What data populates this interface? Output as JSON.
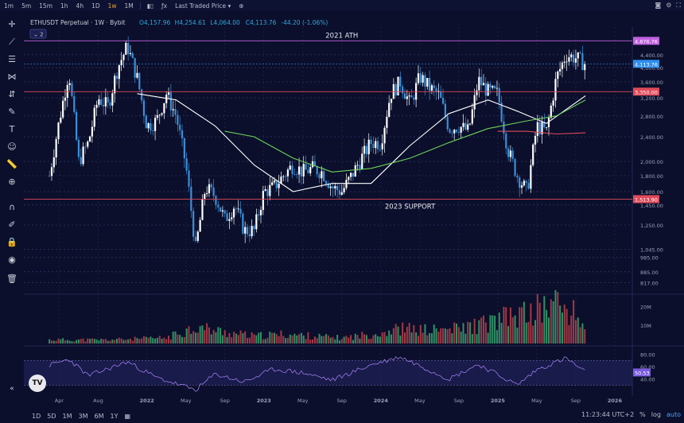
{
  "toolbar": {
    "intervals": [
      "1m",
      "5m",
      "15m",
      "1h",
      "4h",
      "1D",
      "1w",
      "1M"
    ],
    "active_interval": "1w",
    "price_type": "Last Traded Price"
  },
  "legend": {
    "symbol": "ETHUSDT Perpetual · 1W · Bybit",
    "open": "O4,157.96",
    "high": "H4,254.61",
    "low": "L4,064.00",
    "close": "C4,113.76",
    "change": "-44.20 (-1.06%)",
    "indicator_count": "2"
  },
  "bottom": {
    "ranges": [
      "1D",
      "5D",
      "1M",
      "3M",
      "6M",
      "1Y"
    ],
    "clock": "11:23:44 UTC+2",
    "pct": "%",
    "log": "log",
    "auto": "auto"
  },
  "chart_data": {
    "type": "candlestick",
    "title": "ETHUSDT Perpetual · 1W · Bybit",
    "y_scale": "log",
    "ylim": [
      750,
      5400
    ],
    "price_ticks": [
      "4,400.00",
      "4,000.00",
      "3,600.00",
      "3,200.00",
      "2,800.00",
      "2,400.00",
      "2,000.00",
      "1,800.00",
      "1,600.00",
      "1,450.00",
      "1,250.00",
      "1,045.00",
      "985.00",
      "885.00",
      "817.00"
    ],
    "x_tick_labels": [
      "Apr",
      "Aug",
      "2022",
      "May",
      "Sep",
      "2023",
      "May",
      "Sep",
      "2024",
      "May",
      "Sep",
      "2025",
      "May",
      "Sep",
      "2026"
    ],
    "x_tick_dates": [
      "2021-04",
      "2021-08",
      "2022-01",
      "2022-05",
      "2022-09",
      "2023-01",
      "2023-05",
      "2023-09",
      "2024-01",
      "2024-05",
      "2024-09",
      "2025-01",
      "2025-05",
      "2025-09",
      "2026-01"
    ],
    "price_path": [
      [
        "2021-03",
        1800
      ],
      [
        "2021-04",
        2700
      ],
      [
        "2021-05",
        3900
      ],
      [
        "2021-06",
        2000
      ],
      [
        "2021-07",
        2300
      ],
      [
        "2021-08",
        3200
      ],
      [
        "2021-09",
        3000
      ],
      [
        "2021-10",
        4000
      ],
      [
        "2021-11",
        4700
      ],
      [
        "2021-12",
        3700
      ],
      [
        "2022-01",
        2600
      ],
      [
        "2022-02",
        2700
      ],
      [
        "2022-03",
        3300
      ],
      [
        "2022-04",
        2800
      ],
      [
        "2022-05",
        1950
      ],
      [
        "2022-06",
        1050
      ],
      [
        "2022-07",
        1650
      ],
      [
        "2022-08",
        1550
      ],
      [
        "2022-09",
        1300
      ],
      [
        "2022-10",
        1450
      ],
      [
        "2022-11",
        1200
      ],
      [
        "2022-12",
        1200
      ],
      [
        "2023-01",
        1600
      ],
      [
        "2023-02",
        1650
      ],
      [
        "2023-03",
        1800
      ],
      [
        "2023-04",
        1950
      ],
      [
        "2023-05",
        1850
      ],
      [
        "2023-06",
        1900
      ],
      [
        "2023-07",
        1850
      ],
      [
        "2023-08",
        1650
      ],
      [
        "2023-09",
        1600
      ],
      [
        "2023-10",
        1800
      ],
      [
        "2023-11",
        2050
      ],
      [
        "2023-12",
        2300
      ],
      [
        "2024-01",
        2300
      ],
      [
        "2024-02",
        3300
      ],
      [
        "2024-03",
        3600
      ],
      [
        "2024-04",
        3050
      ],
      [
        "2024-05",
        3750
      ],
      [
        "2024-06",
        3450
      ],
      [
        "2024-07",
        3250
      ],
      [
        "2024-08",
        2550
      ],
      [
        "2024-09",
        2600
      ],
      [
        "2024-10",
        2500
      ],
      [
        "2024-11",
        3650
      ],
      [
        "2024-12",
        3350
      ],
      [
        "2025-01",
        3300
      ],
      [
        "2025-02",
        2200
      ],
      [
        "2025-03",
        1800
      ],
      [
        "2025-04",
        1600
      ],
      [
        "2025-05",
        2600
      ],
      [
        "2025-06",
        2500
      ],
      [
        "2025-07",
        3700
      ],
      [
        "2025-08",
        4400
      ],
      [
        "2025-09",
        4300
      ],
      [
        "2025-10",
        4114
      ]
    ],
    "levels": [
      {
        "label": "4,876.76",
        "value": 4876.76,
        "color": "#c060e0"
      },
      {
        "label": "3,350.00",
        "value": 3350.0,
        "color": "#e04a5a"
      },
      {
        "label": "1,513.90",
        "value": 1513.9,
        "color": "#e04a5a"
      }
    ],
    "last_price": {
      "label": "4,113.76",
      "value": 4113.76,
      "color": "#2e8ff0"
    },
    "annotations": [
      "2021 ATH",
      "2023 SUPPORT"
    ],
    "moving_averages": [
      {
        "color": "#ffffff",
        "points": [
          [
            "2021-12",
            3300
          ],
          [
            "2022-04",
            3150
          ],
          [
            "2022-08",
            2600
          ],
          [
            "2022-12",
            1950
          ],
          [
            "2023-04",
            1600
          ],
          [
            "2023-08",
            1700
          ],
          [
            "2023-12",
            1700
          ],
          [
            "2024-04",
            2250
          ],
          [
            "2024-08",
            2850
          ],
          [
            "2024-12",
            3150
          ],
          [
            "2025-03",
            2900
          ],
          [
            "2025-06",
            2650
          ],
          [
            "2025-10",
            3250
          ]
        ]
      },
      {
        "color": "#6ed05a",
        "points": [
          [
            "2022-09",
            2500
          ],
          [
            "2022-12",
            2400
          ],
          [
            "2023-04",
            2050
          ],
          [
            "2023-08",
            1850
          ],
          [
            "2023-12",
            1900
          ],
          [
            "2024-04",
            2050
          ],
          [
            "2024-08",
            2300
          ],
          [
            "2024-12",
            2550
          ],
          [
            "2025-04",
            2700
          ],
          [
            "2025-07",
            2800
          ],
          [
            "2025-10",
            3150
          ]
        ]
      },
      {
        "color": "#e04a5a",
        "points": [
          [
            "2025-01",
            2500
          ],
          [
            "2025-04",
            2500
          ],
          [
            "2025-07",
            2450
          ],
          [
            "2025-10",
            2470
          ]
        ]
      }
    ],
    "volume": {
      "ticks": [
        "20M",
        "10M"
      ],
      "points": [
        [
          "2021-03",
          2
        ],
        [
          "2021-09",
          2
        ],
        [
          "2022-03",
          3
        ],
        [
          "2022-06",
          9
        ],
        [
          "2022-09",
          6
        ],
        [
          "2022-12",
          4
        ],
        [
          "2023-03",
          5
        ],
        [
          "2023-06",
          4
        ],
        [
          "2023-09",
          3
        ],
        [
          "2023-12",
          5
        ],
        [
          "2024-03",
          8
        ],
        [
          "2024-06",
          7
        ],
        [
          "2024-09",
          8
        ],
        [
          "2024-12",
          11
        ],
        [
          "2025-02",
          14
        ],
        [
          "2025-04",
          16
        ],
        [
          "2025-07",
          22
        ],
        [
          "2025-09",
          15
        ],
        [
          "2025-10",
          9
        ]
      ]
    },
    "rsi": {
      "ticks": [
        "80.00",
        "60.00",
        "40.00"
      ],
      "current_label": "50.53",
      "current": 50.53,
      "points": [
        [
          "2021-03",
          62
        ],
        [
          "2021-05",
          72
        ],
        [
          "2021-07",
          45
        ],
        [
          "2021-11",
          68
        ],
        [
          "2022-02",
          42
        ],
        [
          "2022-06",
          22
        ],
        [
          "2022-08",
          48
        ],
        [
          "2022-11",
          35
        ],
        [
          "2023-02",
          56
        ],
        [
          "2023-05",
          50
        ],
        [
          "2023-08",
          38
        ],
        [
          "2023-12",
          63
        ],
        [
          "2024-03",
          76
        ],
        [
          "2024-08",
          40
        ],
        [
          "2024-11",
          64
        ],
        [
          "2025-03",
          30
        ],
        [
          "2025-05",
          55
        ],
        [
          "2025-08",
          74
        ],
        [
          "2025-10",
          50.53
        ]
      ]
    }
  }
}
